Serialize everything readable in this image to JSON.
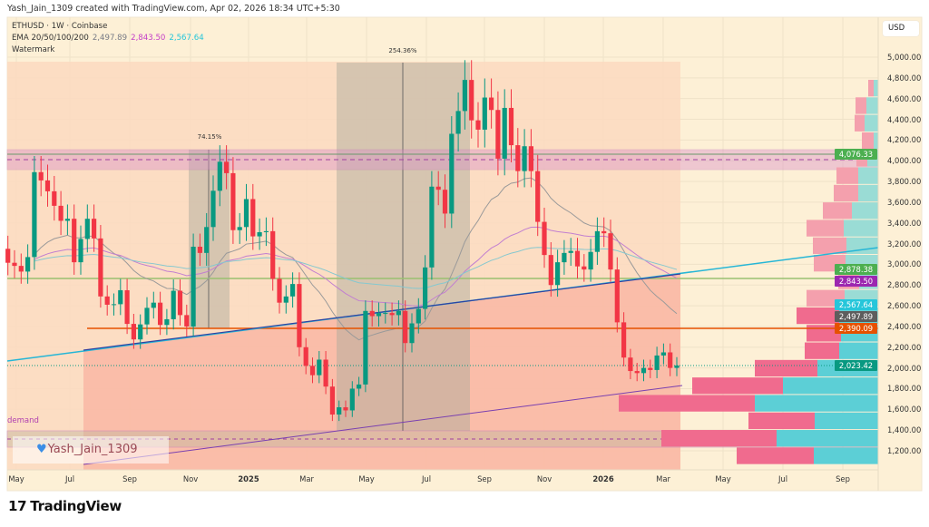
{
  "credit": "Yash_Jain_1309 created with TradingView.com, Apr 02, 2026 18:34 UTC+5:30",
  "legend": {
    "symbol_line": "ETHUSD · 1W · Coinbase",
    "ema_label": "EMA 20/50/100/200",
    "ema_values": [
      "2,497.89",
      "2,843.50",
      "2,567.64"
    ],
    "ema_colors": [
      "#787b86",
      "#c440c8",
      "#26c6da"
    ],
    "watermark": "Watermark"
  },
  "currency_button": "USD",
  "price_ticks": [
    "5,000.00",
    "4,800.00",
    "4,600.00",
    "4,400.00",
    "4,200.00",
    "4,000.00",
    "3,800.00",
    "3,600.00",
    "3,400.00",
    "3,200.00",
    "3,000.00",
    "2,800.00",
    "2,600.00",
    "2,400.00",
    "2,200.00",
    "2,000.00",
    "1,800.00",
    "1,600.00",
    "1,400.00",
    "1,200.00"
  ],
  "price_tags": [
    {
      "label": "4,076.33",
      "price": 4076.33,
      "color": "#4caf50"
    },
    {
      "label": "2,878.38",
      "price": 2878.38,
      "color": "#4caf50"
    },
    {
      "label": "2,843.50",
      "price": 2843.5,
      "color": "#9c27b0"
    },
    {
      "label": "2,567.64",
      "price": 2567.64,
      "color": "#26c6da"
    },
    {
      "label": "2,497.89",
      "price": 2497.89,
      "color": "#5d5d5d"
    },
    {
      "label": "2,390.09",
      "price": 2390.09,
      "color": "#e65100"
    },
    {
      "label": "2,023.42",
      "price": 2023.42,
      "color": "#089981"
    }
  ],
  "time_ticks": [
    {
      "label": "May",
      "year": false
    },
    {
      "label": "Jul",
      "year": false
    },
    {
      "label": "Sep",
      "year": false
    },
    {
      "label": "Nov",
      "year": false
    },
    {
      "label": "2025",
      "year": true
    },
    {
      "label": "Mar",
      "year": false
    },
    {
      "label": "May",
      "year": false
    },
    {
      "label": "Jul",
      "year": false
    },
    {
      "label": "Sep",
      "year": false
    },
    {
      "label": "Nov",
      "year": false
    },
    {
      "label": "2026",
      "year": true
    },
    {
      "label": "Mar",
      "year": false
    },
    {
      "label": "May",
      "year": false
    },
    {
      "label": "Jul",
      "year": false
    },
    {
      "label": "Sep",
      "year": false
    }
  ],
  "measurements": [
    {
      "label": "74.15%"
    },
    {
      "label": "254.36%"
    }
  ],
  "zones": {
    "supply_level": 4076.33,
    "horizontal_level_green": 2878.38,
    "horizontal_level_orange": 2390.09,
    "demand_label": "demand"
  },
  "watermark_box": {
    "text": "Yash_Jain_1309"
  },
  "brand": "TradingView",
  "chart_data": {
    "type": "candlestick",
    "symbol": "ETHUSD",
    "interval": "1W",
    "ylim": [
      1050,
      5000
    ],
    "first_open": 3150,
    "closes": [
      3015,
      2985,
      2930,
      3070,
      3890,
      3810,
      3705,
      3565,
      3420,
      3440,
      3020,
      3245,
      3440,
      3250,
      2690,
      2610,
      2615,
      2750,
      2425,
      2275,
      2420,
      2580,
      2630,
      2415,
      2470,
      2745,
      2510,
      2400,
      3170,
      3110,
      3360,
      3710,
      3990,
      3880,
      3330,
      3360,
      3630,
      3270,
      3310,
      3320,
      2860,
      2630,
      2690,
      2810,
      2200,
      2020,
      1930,
      2080,
      1820,
      1550,
      1620,
      1590,
      1800,
      1840,
      2550,
      2500,
      2530,
      2530,
      2510,
      2550,
      2240,
      2430,
      2570,
      2970,
      3750,
      3720,
      3490,
      4260,
      4480,
      4780,
      4390,
      4300,
      4610,
      4490,
      4020,
      4510,
      4150,
      3900,
      4140,
      3900,
      3410,
      3090,
      2800,
      3020,
      3110,
      3130,
      2980,
      2950,
      3120,
      3320,
      3300,
      2950,
      2440,
      2100,
      1970,
      1950,
      2000,
      1980,
      2120,
      2150,
      2000,
      2023.42
    ],
    "up_color": "#089981",
    "down_color": "#f23645",
    "ema_periods": [
      20,
      50,
      100
    ],
    "volume_profile": {
      "top_price": 4781,
      "row_height_price": 169,
      "rows": [
        {
          "down": 6,
          "up": 5
        },
        {
          "down": 12,
          "up": 13
        },
        {
          "down": 11,
          "up": 15
        },
        {
          "down": 13,
          "up": 5
        },
        {
          "down": 12,
          "up": 12
        },
        {
          "down": 24,
          "up": 22
        },
        {
          "down": 27,
          "up": 22
        },
        {
          "down": 32,
          "up": 29
        },
        {
          "down": 41,
          "up": 38
        },
        {
          "down": 37,
          "up": 35
        },
        {
          "down": 35,
          "up": 36
        },
        {
          "down": 23,
          "up": 21
        },
        {
          "down": 42,
          "up": 37
        },
        {
          "down": 47,
          "up": 43
        },
        {
          "down": 38,
          "up": 41
        },
        {
          "down": 38,
          "up": 43
        },
        {
          "down": 69,
          "up": 67
        },
        {
          "down": 100,
          "up": 105
        },
        {
          "down": 150,
          "up": 136
        },
        {
          "down": 73,
          "up": 70
        },
        {
          "down": 127,
          "up": 112
        },
        {
          "down": 85,
          "up": 71
        }
      ]
    }
  }
}
